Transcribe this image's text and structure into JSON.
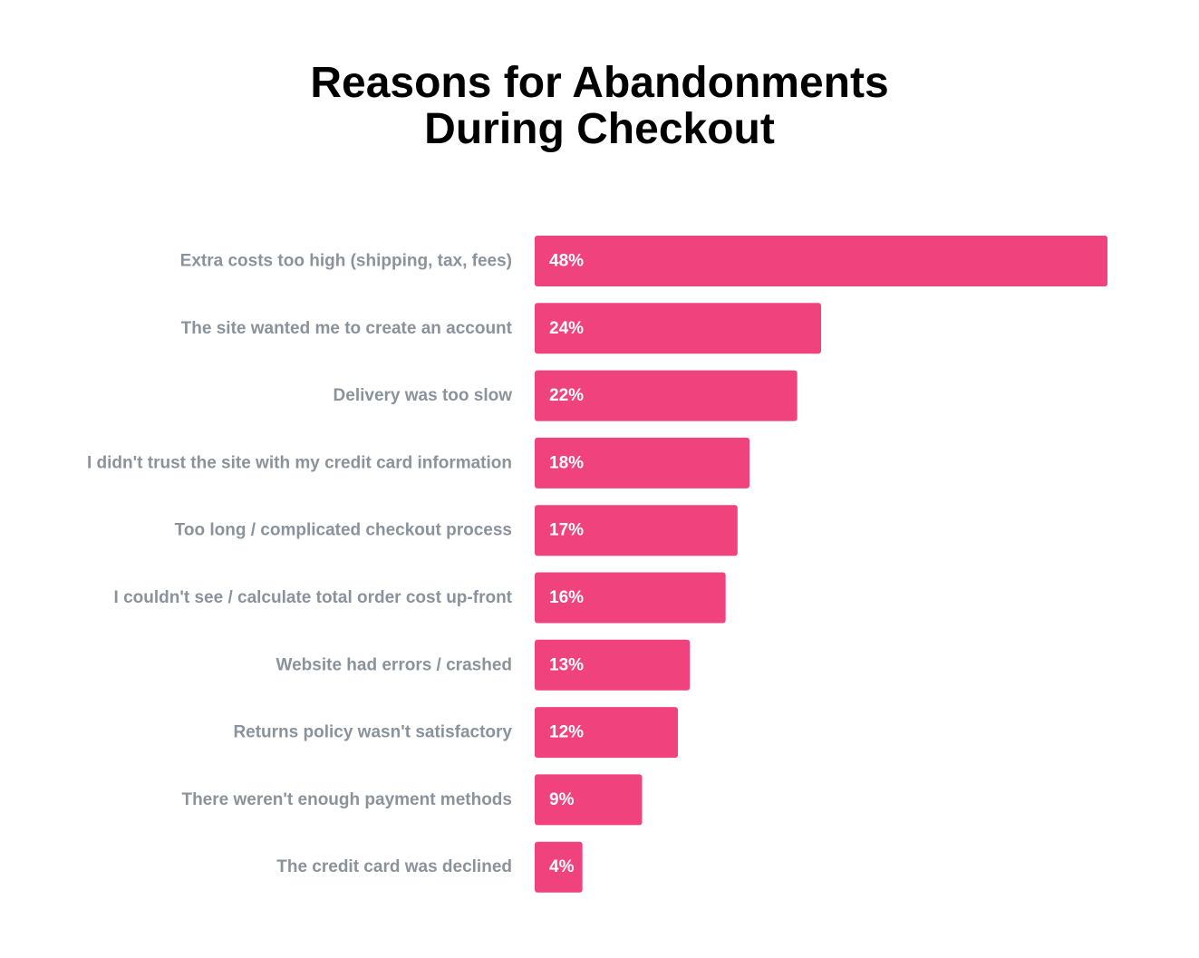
{
  "chart_data": {
    "type": "bar",
    "orientation": "horizontal",
    "title_lines": [
      "Reasons for Abandonments",
      "During Checkout"
    ],
    "categories": [
      "Extra costs too high (shipping, tax, fees)",
      "The site wanted me to create an account",
      "Delivery was too slow",
      "I didn't trust the site with my credit card information",
      "Too long / complicated checkout process",
      "I couldn't see / calculate total order cost up-front",
      "Website had errors / crashed",
      "Returns policy wasn't satisfactory",
      "There weren't enough payment methods",
      "The credit card was declined"
    ],
    "values": [
      48,
      24,
      22,
      18,
      17,
      16,
      13,
      12,
      9,
      4
    ],
    "value_labels": [
      "48%",
      "24%",
      "22%",
      "18%",
      "17%",
      "16%",
      "13%",
      "12%",
      "9%",
      "4%"
    ],
    "grid": false,
    "legend": "none",
    "colors": {
      "bar": "#F0437D",
      "category_label": "#8A939B",
      "value_label": "#FFFFFF",
      "title": "#000000"
    }
  }
}
